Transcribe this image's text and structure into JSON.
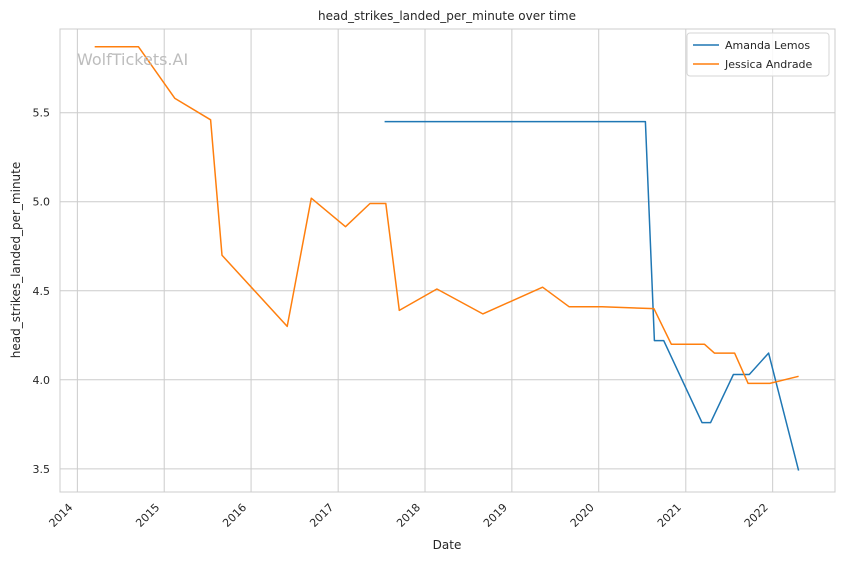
{
  "chart_data": {
    "type": "line",
    "title": "head_strikes_landed_per_minute over time",
    "xlabel": "Date",
    "ylabel": "head_strikes_landed_per_minute",
    "watermark": "WolfTickets.AI",
    "x_ticks": [
      "2014",
      "2015",
      "2016",
      "2017",
      "2018",
      "2019",
      "2020",
      "2021",
      "2022"
    ],
    "y_ticks": [
      "3.5",
      "4.0",
      "4.5",
      "5.0",
      "5.5"
    ],
    "xlim": [
      "2013-10-20",
      "2022-09-20"
    ],
    "ylim": [
      3.37,
      5.97
    ],
    "grid": true,
    "legend_position": "top-right",
    "series": [
      {
        "name": "Amanda Lemos",
        "color": "#1f77b4",
        "points": [
          {
            "x": "2017-07-15",
            "y": 5.45
          },
          {
            "x": "2020-07-15",
            "y": 5.45
          },
          {
            "x": "2020-08-22",
            "y": 4.22
          },
          {
            "x": "2020-09-30",
            "y": 4.22
          },
          {
            "x": "2021-03-10",
            "y": 3.76
          },
          {
            "x": "2021-04-15",
            "y": 3.76
          },
          {
            "x": "2021-07-20",
            "y": 4.03
          },
          {
            "x": "2021-09-25",
            "y": 4.03
          },
          {
            "x": "2021-12-15",
            "y": 4.15
          },
          {
            "x": "2022-04-20",
            "y": 3.49
          }
        ]
      },
      {
        "name": "Jessica Andrade",
        "color": "#ff7f0e",
        "points": [
          {
            "x": "2014-03-15",
            "y": 5.87
          },
          {
            "x": "2014-09-15",
            "y": 5.87
          },
          {
            "x": "2015-02-15",
            "y": 5.58
          },
          {
            "x": "2015-07-15",
            "y": 5.46
          },
          {
            "x": "2015-09-01",
            "y": 4.7
          },
          {
            "x": "2016-06-01",
            "y": 4.3
          },
          {
            "x": "2016-09-10",
            "y": 5.02
          },
          {
            "x": "2017-02-01",
            "y": 4.86
          },
          {
            "x": "2017-05-15",
            "y": 4.99
          },
          {
            "x": "2017-07-20",
            "y": 4.99
          },
          {
            "x": "2017-09-15",
            "y": 4.39
          },
          {
            "x": "2018-02-20",
            "y": 4.51
          },
          {
            "x": "2018-09-01",
            "y": 4.37
          },
          {
            "x": "2019-05-10",
            "y": 4.52
          },
          {
            "x": "2019-08-30",
            "y": 4.41
          },
          {
            "x": "2020-01-15",
            "y": 4.41
          },
          {
            "x": "2020-08-20",
            "y": 4.4
          },
          {
            "x": "2020-11-01",
            "y": 4.2
          },
          {
            "x": "2021-03-20",
            "y": 4.2
          },
          {
            "x": "2021-05-01",
            "y": 4.15
          },
          {
            "x": "2021-07-25",
            "y": 4.15
          },
          {
            "x": "2021-09-20",
            "y": 3.98
          },
          {
            "x": "2021-12-20",
            "y": 3.98
          },
          {
            "x": "2022-04-20",
            "y": 4.02
          }
        ]
      }
    ]
  }
}
